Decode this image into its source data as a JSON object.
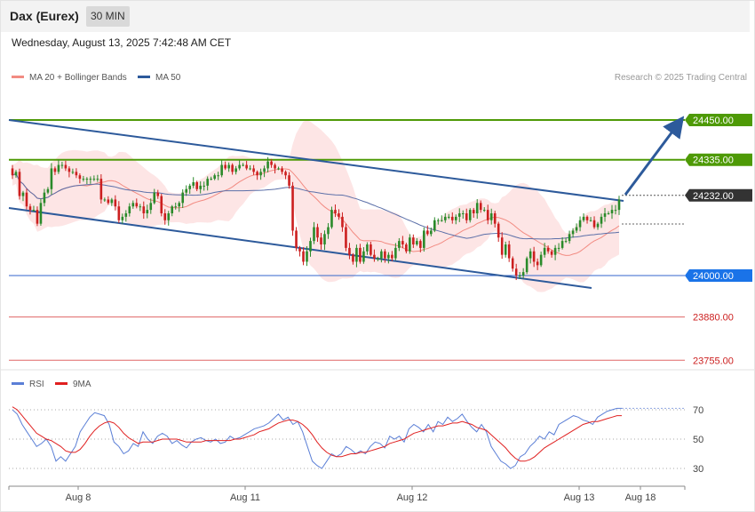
{
  "header": {
    "title": "Dax (Eurex)",
    "interval": "30 MIN"
  },
  "datetime": "Wednesday, August 13, 2025 7:42:48 AM CET",
  "legend": {
    "bollinger_label": "MA 20 + Bollinger Bands",
    "ma50_label": "MA 50",
    "credit": "Research © 2025 Trading Central",
    "bollinger_color": "#f28b82",
    "ma50_color": "#2d5a9b"
  },
  "rsi_legend": {
    "rsi_label": "RSI",
    "ma_label": "9MA",
    "rsi_color": "#5b7fd6",
    "ma_color": "#e02020"
  },
  "colors": {
    "up": "#2a8a2a",
    "down": "#cc1f1f",
    "resistance": "#4e9a06",
    "support": "#3366cc",
    "support2": "#e06666",
    "channel": "#2d5a9b",
    "band_fill": "#fde0e0"
  },
  "chart_data": [
    {
      "type": "candlestick",
      "title": "Dax (Eurex)",
      "interval": "30 MIN",
      "x_ticks": [
        "Aug 8",
        "Aug 11",
        "Aug 12",
        "Aug 13",
        "Aug 18"
      ],
      "y_range": [
        23730,
        24470
      ],
      "levels": [
        {
          "value": 24450,
          "label": "24450.00",
          "kind": "resistance"
        },
        {
          "value": 24335,
          "label": "24335.00",
          "kind": "resistance"
        },
        {
          "value": 24232,
          "label": "24232.00",
          "kind": "current"
        },
        {
          "value": 24000,
          "label": "24000.00",
          "kind": "support"
        },
        {
          "value": 23880,
          "label": "23880.00",
          "kind": "support2"
        },
        {
          "value": 23755,
          "label": "23755.00",
          "kind": "support2"
        }
      ],
      "closes": [
        24290,
        24300,
        24230,
        24240,
        24200,
        24190,
        24190,
        24150,
        24210,
        24240,
        24250,
        24310,
        24300,
        24320,
        24320,
        24310,
        24300,
        24300,
        24290,
        24280,
        24280,
        24280,
        24280,
        24280,
        24280,
        24220,
        24220,
        24210,
        24220,
        24200,
        24160,
        24170,
        24180,
        24200,
        24210,
        24200,
        24200,
        24180,
        24190,
        24210,
        24240,
        24230,
        24180,
        24160,
        24180,
        24200,
        24200,
        24210,
        24240,
        24250,
        24260,
        24270,
        24250,
        24260,
        24260,
        24280,
        24280,
        24290,
        24290,
        24320,
        24310,
        24320,
        24300,
        24310,
        24320,
        24320,
        24310,
        24310,
        24300,
        24290,
        24300,
        24310,
        24330,
        24320,
        24310,
        24310,
        24300,
        24290,
        24260,
        24130,
        24080,
        24070,
        24040,
        24070,
        24100,
        24140,
        24110,
        24090,
        24120,
        24140,
        24190,
        24180,
        24170,
        24140,
        24080,
        24060,
        24040,
        24080,
        24040,
        24070,
        24090,
        24060,
        24050,
        24050,
        24070,
        24050,
        24060,
        24050,
        24080,
        24100,
        24090,
        24070,
        24110,
        24090,
        24100,
        24080,
        24130,
        24120,
        24130,
        24160,
        24160,
        24160,
        24170,
        24170,
        24160,
        24170,
        24180,
        24180,
        24160,
        24190,
        24180,
        24210,
        24190,
        24190,
        24160,
        24180,
        24150,
        24110,
        24060,
        24090,
        24050,
        24020,
        24000,
        24000,
        24010,
        24050,
        24070,
        24040,
        24030,
        24060,
        24080,
        24070,
        24060,
        24080,
        24080,
        24100,
        24100,
        24120,
        24130,
        24140,
        24160,
        24170,
        24160,
        24160,
        24140,
        24150,
        24170,
        24180,
        24180,
        24190,
        24190,
        24220
      ],
      "rsi_axis": [
        30,
        50,
        70
      ],
      "rsi": [
        70,
        67,
        60,
        55,
        50,
        45,
        47,
        50,
        45,
        35,
        38,
        35,
        40,
        45,
        55,
        60,
        65,
        68,
        67,
        66,
        60,
        48,
        45,
        40,
        42,
        47,
        45,
        55,
        50,
        47,
        52,
        54,
        52,
        47,
        49,
        46,
        44,
        48,
        50,
        51,
        49,
        48,
        50,
        47,
        48,
        52,
        50,
        51,
        53,
        55,
        57,
        58,
        59,
        61,
        64,
        67,
        63,
        65,
        60,
        62,
        55,
        45,
        35,
        32,
        30,
        35,
        40,
        38,
        40,
        45,
        43,
        40,
        42,
        40,
        45,
        48,
        47,
        44,
        52,
        50,
        52,
        48,
        57,
        60,
        58,
        55,
        60,
        55,
        62,
        60,
        65,
        62,
        64,
        67,
        62,
        58,
        55,
        60,
        55,
        45,
        40,
        35,
        33,
        30,
        32,
        38,
        40,
        45,
        48,
        52,
        50,
        55,
        53,
        60,
        62,
        64,
        66,
        65,
        63,
        62,
        60,
        65,
        67,
        69,
        70,
        71,
        71
      ],
      "rsi_ma": [
        72,
        70,
        66,
        62,
        58,
        54,
        52,
        50,
        49,
        47,
        45,
        42,
        41,
        41,
        43,
        47,
        52,
        56,
        59,
        61,
        62,
        61,
        58,
        54,
        51,
        49,
        47,
        48,
        48,
        48,
        49,
        50,
        50,
        50,
        50,
        49,
        48,
        48,
        48,
        48,
        49,
        49,
        49,
        49,
        49,
        49,
        50,
        50,
        51,
        52,
        53,
        55,
        56,
        57,
        59,
        61,
        62,
        63,
        63,
        62,
        60,
        57,
        53,
        48,
        44,
        41,
        39,
        38,
        38,
        39,
        40,
        40,
        41,
        41,
        42,
        43,
        44,
        45,
        47,
        48,
        49,
        50,
        52,
        54,
        55,
        56,
        57,
        58,
        59,
        59,
        60,
        61,
        61,
        62,
        61,
        60,
        58,
        57,
        56,
        53,
        50,
        47,
        44,
        40,
        37,
        35,
        35,
        36,
        38,
        41,
        44,
        46,
        48,
        50,
        52,
        54,
        56,
        58,
        60,
        61,
        62,
        62,
        63,
        64,
        65,
        66,
        66
      ]
    }
  ]
}
